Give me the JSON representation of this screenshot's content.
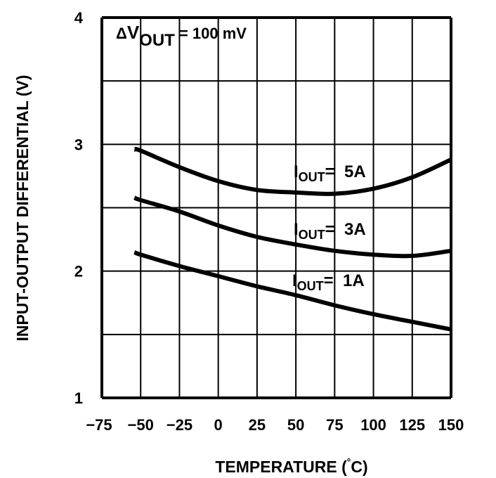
{
  "chart_data": {
    "type": "line",
    "xlabel": "TEMPERATURE (°C)",
    "xlabel_main": "TEMPERATURE (",
    "xlabel_deg": "°",
    "xlabel_end": "C)",
    "ylabel": "INPUT-OUTPUT DIFFERENTIAL (V)",
    "xlim": [
      -75,
      150
    ],
    "ylim": [
      1,
      4
    ],
    "grid": true,
    "xticks": [
      -75,
      -50,
      -25,
      0,
      25,
      50,
      75,
      100,
      125,
      150
    ],
    "xtick_labels": [
      "−75",
      "−50",
      "−25",
      "0",
      "25",
      "50",
      "75",
      "100",
      "125",
      "150"
    ],
    "yticks": [
      1,
      1.5,
      2,
      2.5,
      3,
      3.5,
      4
    ],
    "ytick_labels": [
      "1",
      "",
      "2",
      "",
      "3",
      "",
      "4"
    ],
    "annotation": {
      "delta": "Δ",
      "v": "V",
      "sub": "OUT",
      "rest": " = 100 mV"
    },
    "x": [
      -54,
      -50,
      -25,
      0,
      25,
      50,
      75,
      100,
      125,
      150
    ],
    "series": [
      {
        "name": "IOUT = 5A",
        "label_i": "I",
        "label_sub": "OUT",
        "label_rest": "=  5A",
        "values": [
          2.96,
          2.95,
          2.82,
          2.71,
          2.64,
          2.62,
          2.61,
          2.65,
          2.74,
          2.88
        ]
      },
      {
        "name": "IOUT = 3A",
        "label_i": "I",
        "label_sub": "OUT",
        "label_rest": "=  3A",
        "values": [
          2.58,
          2.56,
          2.47,
          2.36,
          2.27,
          2.21,
          2.16,
          2.13,
          2.12,
          2.16
        ]
      },
      {
        "name": "IOUT = 1A",
        "label_i": "I",
        "label_sub": "OUT",
        "label_rest": "=  1A",
        "values": [
          2.15,
          2.13,
          2.04,
          1.96,
          1.88,
          1.81,
          1.73,
          1.66,
          1.6,
          1.54
        ]
      }
    ]
  }
}
